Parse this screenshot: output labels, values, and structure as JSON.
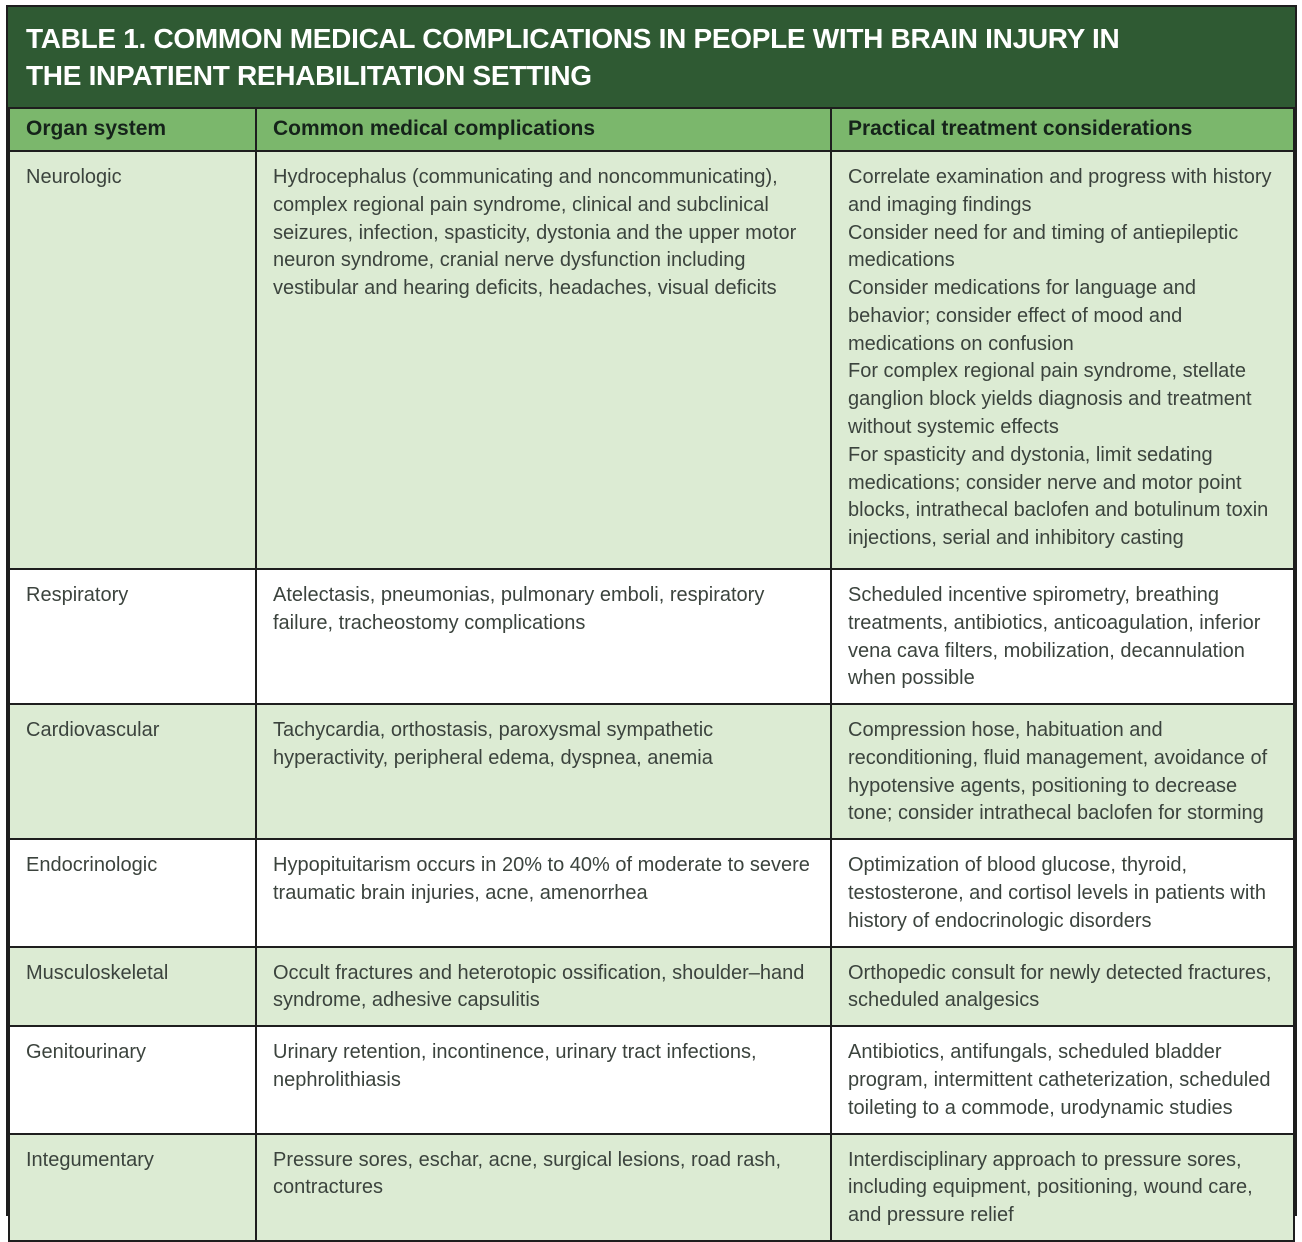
{
  "table": {
    "title_line1": "TABLE 1. COMMON MEDICAL COMPLICATIONS IN PEOPLE WITH BRAIN INJURY IN",
    "title_line2": "THE INPATIENT REHABILITATION SETTING",
    "columns": [
      "Organ system",
      "Common medical complications",
      "Practical treatment considerations"
    ],
    "rows": [
      {
        "organ_system": "Neurologic",
        "complications": "Hydrocephalus (communicating and noncommunicating), complex regional pain syndrome, clinical and subclinical seizures, infection, spasticity, dystonia and the upper motor neuron syndrome, cranial nerve dysfunction including vestibular and hearing deficits, headaches, visual deficits",
        "treatments": [
          "Correlate examination and progress with history and imaging findings",
          "Consider need for and timing of antiepileptic medications",
          "Consider medications for language and behavior; consider effect of mood and medications on confusion",
          "For complex regional pain syndrome, stellate ganglion block yields diagnosis and treatment without systemic effects",
          "For spasticity and dystonia, limit sedating medications; consider nerve and motor point blocks, intrathecal baclofen and botulinum toxin injections, serial and inhibitory casting"
        ]
      },
      {
        "organ_system": "Respiratory",
        "complications": "Atelectasis, pneumonias, pulmonary emboli, respiratory failure, tracheostomy complications",
        "treatments": [
          "Scheduled incentive spirometry, breathing treatments, antibiotics, anticoagulation, inferior vena cava filters, mobilization, decannulation when possible"
        ]
      },
      {
        "organ_system": "Cardiovascular",
        "complications": "Tachycardia, orthostasis, paroxysmal sympathetic hyperactivity, peripheral edema, dyspnea, anemia",
        "treatments": [
          "Compression hose, habituation and reconditioning, fluid management, avoidance of hypotensive agents, positioning to decrease tone; consider intrathecal baclofen for storming"
        ]
      },
      {
        "organ_system": "Endocrinologic",
        "complications": "Hypopituitarism occurs in 20% to 40% of moderate to severe traumatic brain injuries, acne, amenorrhea",
        "treatments": [
          "Optimization of blood glucose, thyroid, testosterone, and cortisol levels in patients with history of endocrinologic disorders"
        ]
      },
      {
        "organ_system": "Musculoskeletal",
        "complications": "Occult fractures and heterotopic ossification, shoulder–hand syndrome, adhesive capsulitis",
        "treatments": [
          "Orthopedic consult for newly detected fractures, scheduled analgesics"
        ]
      },
      {
        "organ_system": "Genitourinary",
        "complications": "Urinary retention, incontinence, urinary tract infections, nephrolithiasis",
        "treatments": [
          "Antibiotics, antifungals, scheduled bladder program, intermittent catheterization, scheduled toileting to a commode, urodynamic studies"
        ]
      },
      {
        "organ_system": "Integumentary",
        "complications": "Pressure sores, eschar, acne, surgical lesions, road rash, contractures",
        "treatments": [
          "Interdisciplinary approach to pressure sores, including equipment, positioning, wound care, and pressure relief"
        ]
      }
    ],
    "colors": {
      "title_bar": "#2f5a33",
      "header_row": "#7bb76c",
      "row_stripe": "#dcebd3",
      "row_plain": "#ffffff",
      "border": "#1e1e1e",
      "title_text": "#ffffff",
      "header_text": "#15231a",
      "body_text": "#3b433d"
    }
  }
}
